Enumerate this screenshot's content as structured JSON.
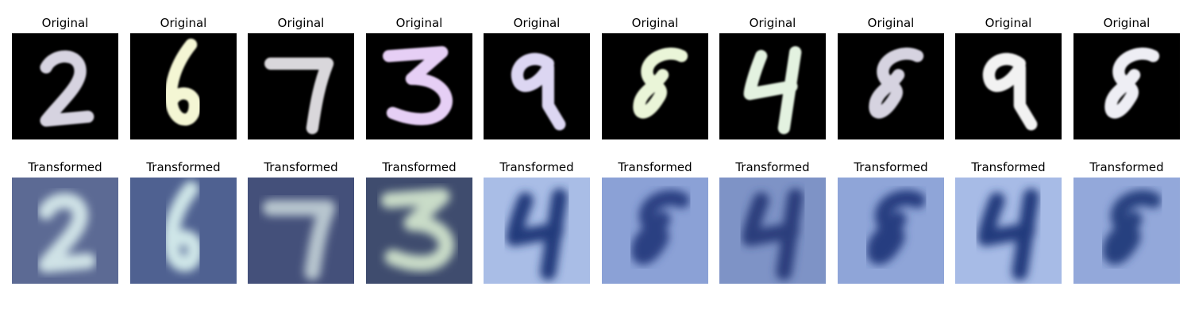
{
  "panels": [
    {
      "original_title": "Original",
      "transformed_title": "Transformed",
      "digit": "2",
      "digit_color": "#d6d3e0",
      "trans_digit": "2",
      "trans_bg": "#5c6a94",
      "trans_fg": "#cfe2e6"
    },
    {
      "original_title": "Original",
      "transformed_title": "Transformed",
      "digit": "6",
      "digit_color": "#f4f6d4",
      "trans_digit": "6",
      "trans_bg": "#4f6191",
      "trans_fg": "#cfe6e8"
    },
    {
      "original_title": "Original",
      "transformed_title": "Transformed",
      "digit": "7",
      "digit_color": "#d9d7db",
      "trans_digit": "7",
      "trans_bg": "#44507a",
      "trans_fg": "#b8c6cf"
    },
    {
      "original_title": "Original",
      "transformed_title": "Transformed",
      "digit": "3",
      "digit_color": "#e6cff5",
      "trans_digit": "3",
      "trans_bg": "#3f4c6e",
      "trans_fg": "#c9dcc8"
    },
    {
      "original_title": "Original",
      "transformed_title": "Transformed",
      "digit": "9",
      "digit_color": "#dcd6f2",
      "trans_digit": "4",
      "trans_bg": "#a9bde6",
      "trans_fg": "#243b7c"
    },
    {
      "original_title": "Original",
      "transformed_title": "Transformed",
      "digit": "8",
      "digit_color": "#eaf5d8",
      "trans_digit": "8",
      "trans_bg": "#8ba1d6",
      "trans_fg": "#2a3f82"
    },
    {
      "original_title": "Original",
      "transformed_title": "Transformed",
      "digit": "4",
      "digit_color": "#e3f2e0",
      "trans_digit": "4",
      "trans_bg": "#7e93c6",
      "trans_fg": "#2b3d7b"
    },
    {
      "original_title": "Original",
      "transformed_title": "Transformed",
      "digit": "8",
      "digit_color": "#d6d3e0",
      "trans_digit": "8",
      "trans_bg": "#8fa5d8",
      "trans_fg": "#263c80"
    },
    {
      "original_title": "Original",
      "transformed_title": "Transformed",
      "digit": "9",
      "digit_color": "#f2f2f2",
      "trans_digit": "4",
      "trans_bg": "#a7bbe6",
      "trans_fg": "#223a7d"
    },
    {
      "original_title": "Original",
      "transformed_title": "Transformed",
      "digit": "8",
      "digit_color": "#eeeef4",
      "trans_digit": "8",
      "trans_bg": "#93a8da",
      "trans_fg": "#26407f"
    }
  ]
}
